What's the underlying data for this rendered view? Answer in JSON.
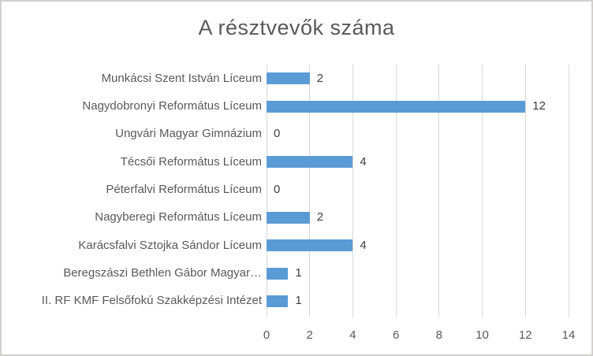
{
  "chart": {
    "title": "A résztvevők száma"
  },
  "chart_data": {
    "type": "bar",
    "orientation": "horizontal",
    "title": "A résztvevők száma",
    "categories": [
      "Munkácsi Szent István Líceum",
      "Nagydobronyi Református Líceum",
      "Ungvári Magyar Gimnázium",
      "Técsői Református Líceum",
      "Péterfalvi Református Líceum",
      "Nagyberegi Református Líceum",
      "Karácsfalvi Sztojka Sándor Líceum",
      "Beregszászi Bethlen Gábor Magyar…",
      "II. RF KMF Felsőfokú Szakképzési Intézet"
    ],
    "values": [
      2,
      12,
      0,
      4,
      0,
      2,
      4,
      1,
      1
    ],
    "data_labels": [
      "2",
      "12",
      "0",
      "4",
      "0",
      "2",
      "4",
      "1",
      "1"
    ],
    "xlabel": "",
    "ylabel": "",
    "xlim": [
      0,
      14
    ],
    "x_ticks": [
      0,
      2,
      4,
      6,
      8,
      10,
      12,
      14
    ],
    "grid": true,
    "legend": "none",
    "colors": {
      "bar": "#5B9BD5",
      "gridline": "#D9D9D9",
      "title_text": "#595959",
      "category_text": "#595959",
      "tick_text": "#595959",
      "value_text": "#404040"
    }
  }
}
